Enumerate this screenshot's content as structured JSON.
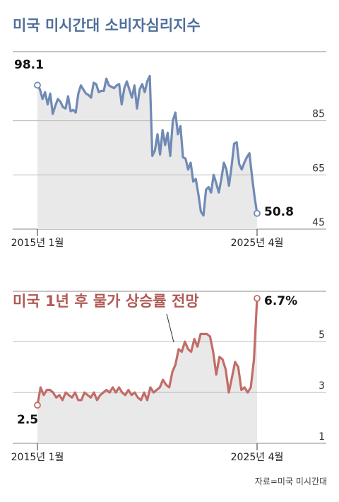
{
  "source": "자료=미국 미시간대",
  "chart_data": [
    {
      "type": "line",
      "title": "미국 미시간대 소비자심리지수",
      "color": "#6f8ab4",
      "fill": "#e9e9e9",
      "xlabel": "",
      "ylabel": "",
      "x_tick_labels": [
        "2015년 1월",
        "2025년 4월"
      ],
      "y_ticks": [
        45,
        65,
        85
      ],
      "ylim": [
        45,
        105
      ],
      "start_label": "98.1",
      "end_label": "50.8",
      "series": [
        {
          "values": [
            98.1,
            96.5,
            93.0,
            95.5,
            91.0,
            95.0,
            87.5,
            90.5,
            93.0,
            92.0,
            90.0,
            89.5,
            94.0,
            88.5,
            89.0,
            88.0,
            95.0,
            98.0,
            96.5,
            95.0,
            94.5,
            93.5,
            99.0,
            98.5,
            95.5,
            96.0,
            96.0,
            100.5,
            98.0,
            97.5,
            97.0,
            98.0,
            98.5,
            91.0,
            97.0,
            99.5,
            96.5,
            93.5,
            98.0,
            89.5,
            96.5,
            98.5,
            95.5,
            99.5,
            101.5,
            72.0,
            74.0,
            80.0,
            72.5,
            81.5,
            76.0,
            80.5,
            72.0,
            85.0,
            88.0,
            80.0,
            83.0,
            71.5,
            71.0,
            67.0,
            69.5,
            62.5,
            63.5,
            58.0,
            51.5,
            50.0,
            59.5,
            60.5,
            58.5,
            65.0,
            62.0,
            58.5,
            63.5,
            69.5,
            67.0,
            61.0,
            68.0,
            76.5,
            77.0,
            69.0,
            67.0,
            69.5,
            71.5,
            73.0,
            64.5,
            57.0,
            50.8
          ]
        }
      ]
    },
    {
      "type": "line",
      "title": "미국 1년 후 물가 상승률 전망",
      "color": "#c36c68",
      "fill": "#e9e9e9",
      "xlabel": "",
      "ylabel": "",
      "x_tick_labels": [
        "2015년 1월",
        "2025년 4월"
      ],
      "y_ticks": [
        1,
        3,
        5
      ],
      "ylim": [
        1,
        6.7
      ],
      "start_label": "2.5",
      "end_label": "6.7%",
      "series": [
        {
          "values": [
            2.5,
            3.2,
            2.9,
            3.1,
            3.1,
            3.0,
            2.8,
            2.9,
            2.7,
            3.0,
            2.9,
            2.8,
            3.0,
            2.7,
            2.7,
            3.0,
            2.9,
            2.8,
            3.0,
            2.7,
            2.9,
            3.0,
            3.1,
            3.0,
            3.2,
            3.0,
            3.2,
            3.0,
            2.9,
            3.1,
            2.9,
            3.0,
            2.8,
            2.7,
            3.0,
            2.7,
            3.2,
            3.0,
            3.1,
            3.2,
            3.5,
            3.3,
            3.2,
            3.8,
            4.1,
            4.7,
            4.6,
            5.0,
            4.7,
            4.6,
            5.1,
            4.8,
            5.3,
            5.3,
            5.3,
            5.2,
            4.6,
            3.7,
            4.4,
            4.3,
            3.9,
            3.0,
            3.6,
            4.2,
            4.0,
            3.1,
            3.2,
            3.0,
            3.2,
            4.3,
            6.7
          ]
        }
      ]
    }
  ]
}
